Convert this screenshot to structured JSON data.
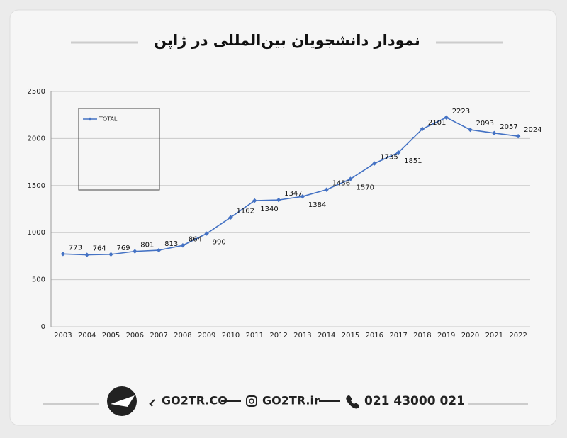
{
  "chart_data": {
    "type": "line",
    "title": "نمودار دانشجویان بین‌المللی در ژاپن",
    "categories": [
      "2003",
      "2004",
      "2005",
      "2006",
      "2007",
      "2008",
      "2009",
      "2010",
      "2011",
      "2012",
      "2013",
      "2014",
      "2015",
      "2016",
      "2017",
      "2018",
      "2019",
      "2020",
      "2021",
      "2022"
    ],
    "series": [
      {
        "name": "TOTAL",
        "color": "#4472c4",
        "values": [
          773,
          764,
          769,
          801,
          813,
          864,
          990,
          1162,
          1340,
          1347,
          1384,
          1456,
          1570,
          1735,
          1851,
          2101,
          2223,
          2093,
          2057,
          2024
        ]
      }
    ],
    "ylim": [
      0,
      2500
    ],
    "yticks": [
      0,
      500,
      1000,
      1500,
      2000,
      2500
    ],
    "grid": true,
    "legend": "upper-left"
  },
  "footer": {
    "website": "GO2TR.CO",
    "instagram": "GO2TR.ir",
    "phone": "021 43000 021"
  }
}
